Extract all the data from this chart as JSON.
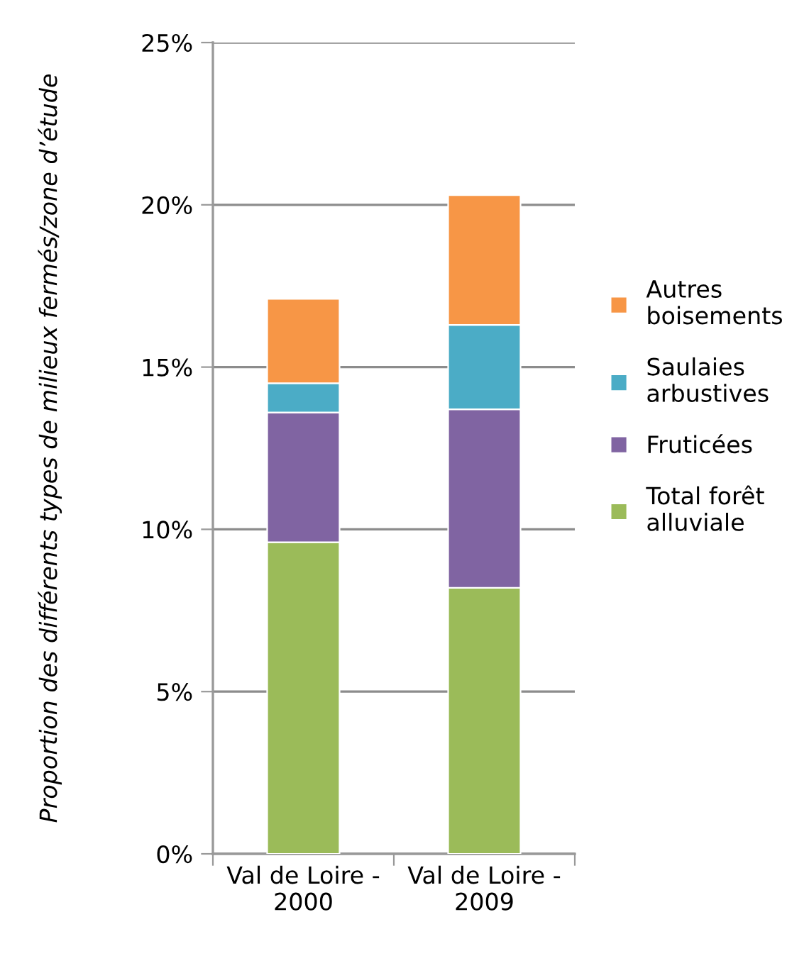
{
  "chart_data": {
    "type": "bar",
    "stacked": true,
    "categories": [
      "Val de Loire -\n2000",
      "Val de Loire -\n2009"
    ],
    "ylabel": "Proportion des différents types de milieux fermés/zone d’étude",
    "ylim": [
      0,
      25
    ],
    "yticks": [
      {
        "value": 0,
        "label": "0%"
      },
      {
        "value": 5,
        "label": "5%"
      },
      {
        "value": 10,
        "label": "10%"
      },
      {
        "value": 15,
        "label": "15%"
      },
      {
        "value": 20,
        "label": "20%"
      },
      {
        "value": 25,
        "label": "25%"
      }
    ],
    "grid": "y",
    "legend": "right",
    "series": [
      {
        "name": "Total forêt\nalluviale",
        "color": "#9bbb59",
        "values": [
          9.6,
          8.2
        ]
      },
      {
        "name": "Fruticées",
        "color": "#8064a2",
        "values": [
          4.0,
          5.5
        ]
      },
      {
        "name": "Saulaies\narbustives",
        "color": "#4bacc6",
        "values": [
          0.9,
          2.6
        ]
      },
      {
        "name": "Autres\nboisements",
        "color": "#f79646",
        "values": [
          2.6,
          4.0
        ]
      }
    ]
  }
}
